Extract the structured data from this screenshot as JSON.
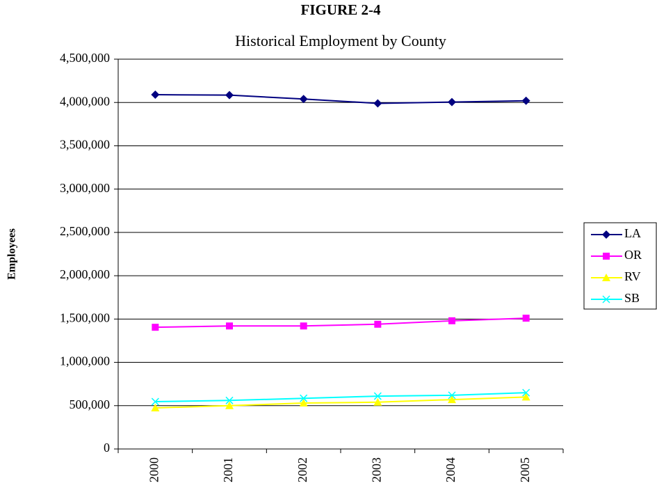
{
  "chart_data": {
    "type": "line",
    "title": "FIGURE 2-4",
    "subtitle": "Historical Employment by County",
    "y_label": "Employees",
    "categories": [
      "2000",
      "2001",
      "2002",
      "2003",
      "2004",
      "2005"
    ],
    "series": [
      {
        "name": "LA",
        "color": "#000080",
        "marker": "diamond",
        "values": [
          4090000,
          4085000,
          4040000,
          3990000,
          4005000,
          4020000
        ]
      },
      {
        "name": "OR",
        "color": "#ff00ff",
        "marker": "square",
        "values": [
          1405000,
          1420000,
          1420000,
          1440000,
          1480000,
          1510000
        ]
      },
      {
        "name": "RV",
        "color": "#ffff00",
        "marker": "triangle",
        "values": [
          474000,
          500000,
          530000,
          540000,
          570000,
          600000
        ]
      },
      {
        "name": "SB",
        "color": "#00ffff",
        "marker": "x",
        "values": [
          546000,
          560000,
          585000,
          610000,
          620000,
          650000
        ]
      }
    ],
    "ylim": [
      0,
      4500000
    ],
    "yticks": [
      0,
      {
        "value": 500000,
        "label": "500,000"
      },
      {
        "value": 1000000,
        "label": "1,000,000"
      },
      {
        "value": 1500000,
        "label": "1,500,000"
      },
      {
        "value": 2000000,
        "label": "2,000,000"
      },
      {
        "value": 2500000,
        "label": "2,500,000"
      },
      {
        "value": 3000000,
        "label": "3,000,000"
      },
      {
        "value": 3500000,
        "label": "3,500,000"
      },
      {
        "value": 4000000,
        "label": "4,000,000"
      },
      {
        "value": 4500000,
        "label": "4,500,000"
      }
    ],
    "grid": true,
    "legend": "right"
  }
}
